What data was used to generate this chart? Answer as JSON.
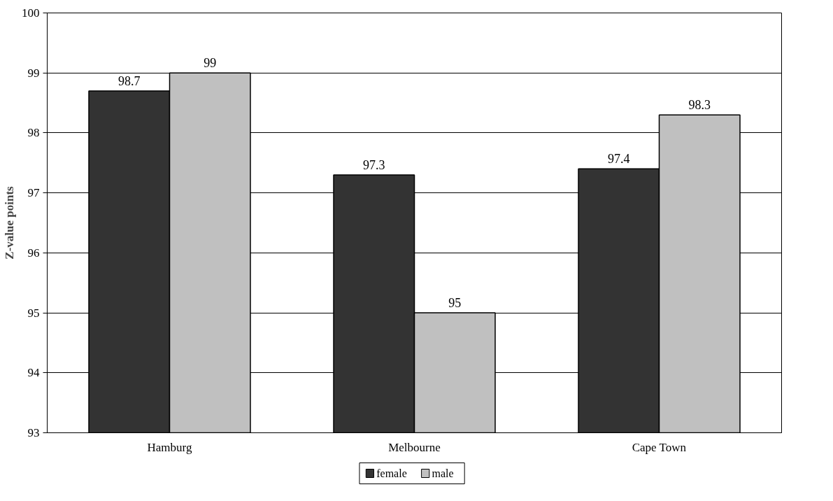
{
  "chart_data": {
    "type": "bar",
    "ylabel": "Z-value points",
    "categories": [
      "Hamburg",
      "Melbourne",
      "Cape Town"
    ],
    "series": [
      {
        "name": "female",
        "color": "#333333",
        "values": [
          98.7,
          97.3,
          97.4
        ]
      },
      {
        "name": "male",
        "color": "#c0c0c0",
        "values": [
          99,
          95,
          98.3
        ]
      }
    ],
    "ylim": [
      93,
      100
    ],
    "yticks": [
      93,
      94,
      95,
      96,
      97,
      98,
      99,
      100
    ],
    "grid": "y",
    "legend": "bottom",
    "data_labels": true
  }
}
